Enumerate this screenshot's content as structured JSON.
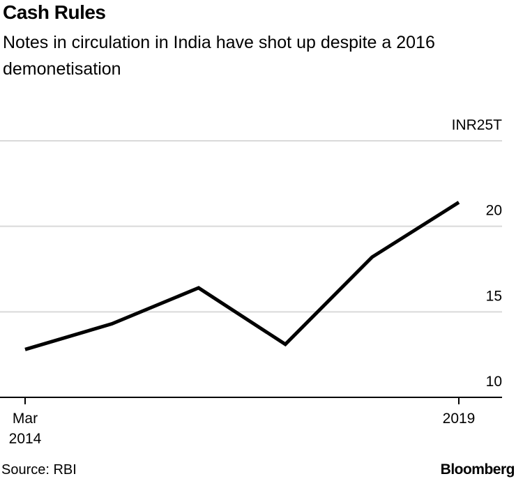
{
  "title": "Cash Rules",
  "subtitle": "Notes in circulation in India have shot up despite a 2016 demonetisation",
  "source": "Source: RBI",
  "brand": "Bloomberg",
  "chart_data": {
    "type": "line",
    "title": "Cash Rules",
    "subtitle": "Notes in circulation in India have shot up despite a 2016 demonetisation",
    "unit_label": "INR25T",
    "x": [
      "2014",
      "2015",
      "2016",
      "2017",
      "2018",
      "2019"
    ],
    "x_tick_labels": [
      {
        "x": "2014",
        "lines": [
          "Mar",
          "2014"
        ]
      },
      {
        "x": "2019",
        "lines": [
          "2019"
        ]
      }
    ],
    "series": [
      {
        "values": [
          12.8,
          14.3,
          16.4,
          13.1,
          18.2,
          21.4
        ]
      }
    ],
    "ylim": [
      10,
      25
    ],
    "y_ticks": [
      10,
      15,
      20,
      25
    ],
    "y_tick_labels": [
      "10",
      "15",
      "20",
      "INR25T"
    ],
    "grid": true,
    "line_color": "#000000",
    "grid_color": "#d9d9d9"
  }
}
